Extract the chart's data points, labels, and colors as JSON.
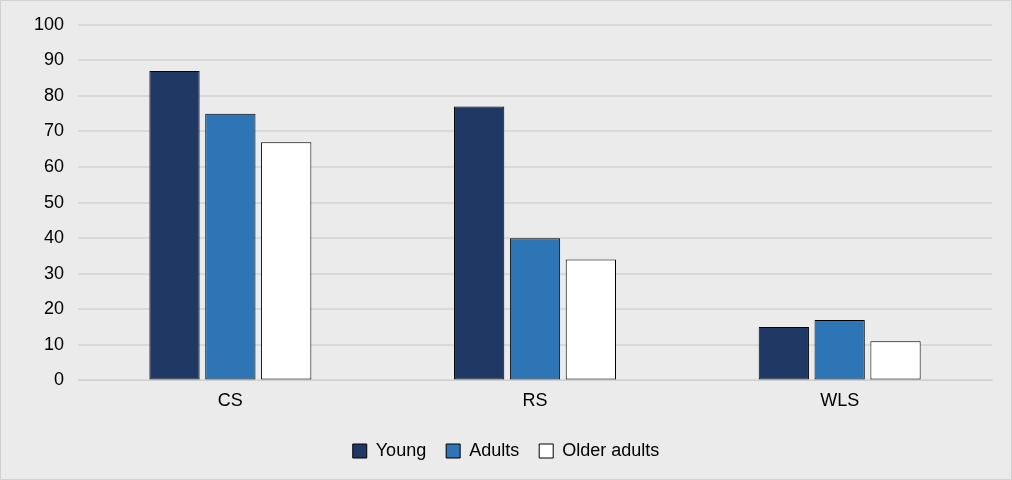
{
  "chart_data": {
    "type": "bar",
    "categories": [
      "CS",
      "RS",
      "WLS"
    ],
    "series": [
      {
        "name": "Young",
        "color": "#1f3864",
        "values": [
          87,
          77,
          15
        ]
      },
      {
        "name": "Adults",
        "color": "#2e75b6",
        "values": [
          75,
          40,
          17
        ]
      },
      {
        "name": "Older adults",
        "color": "#ffffff",
        "values": [
          67,
          34,
          11
        ]
      }
    ],
    "ylim": [
      0,
      100
    ],
    "yticks": [
      0,
      10,
      20,
      30,
      40,
      50,
      60,
      70,
      80,
      90,
      100
    ],
    "grid": "y",
    "legend": "bottom"
  }
}
